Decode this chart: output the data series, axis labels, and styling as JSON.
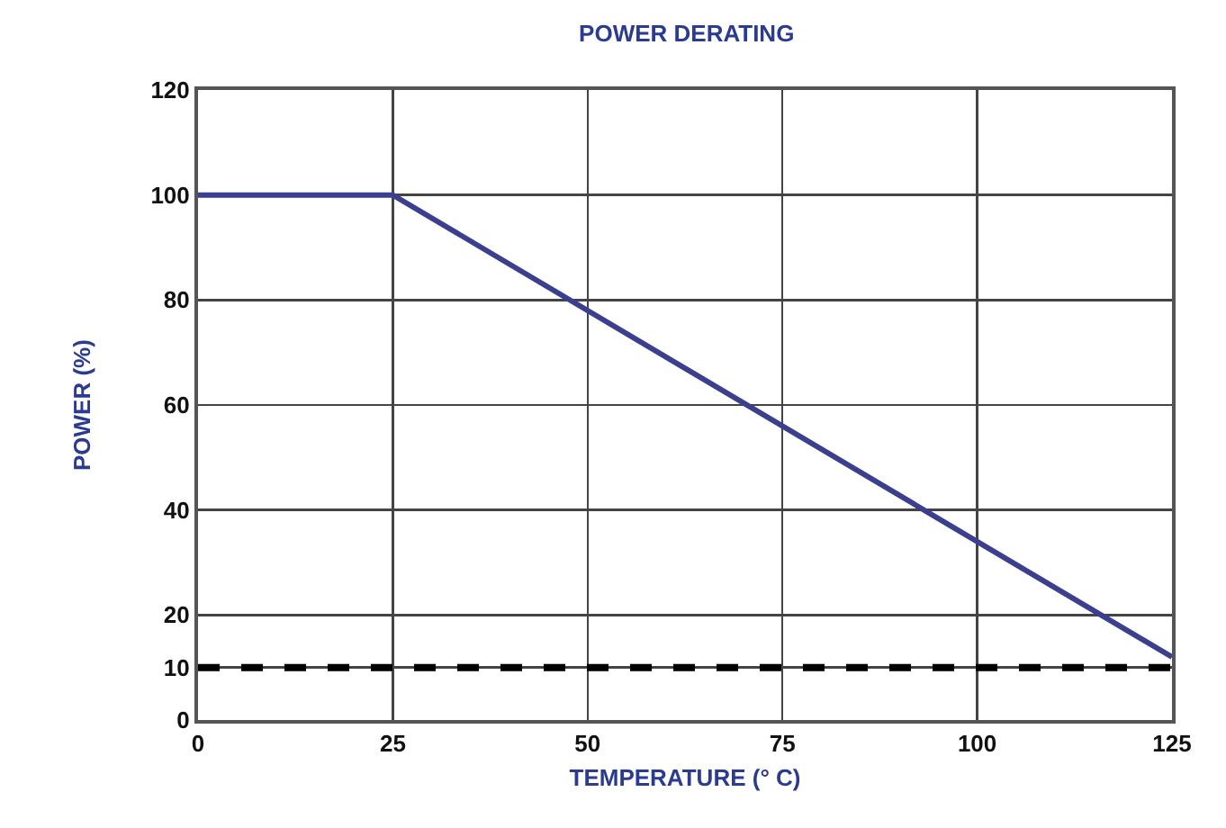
{
  "chart_data": {
    "type": "line",
    "title": "POWER DERATING",
    "xlabel": "TEMPERATURE (° C)",
    "ylabel": "POWER (%)",
    "x": [
      0,
      25,
      125
    ],
    "series": [
      {
        "color": "#3b3f8f",
        "values": [
          100,
          100,
          12
        ]
      }
    ],
    "xlim": [
      0,
      125
    ],
    "xticks": [
      0,
      25,
      50,
      75,
      100,
      125
    ],
    "ylim": [
      0,
      120
    ],
    "yticks": [
      0,
      10,
      20,
      40,
      60,
      80,
      100,
      120
    ],
    "grid": true,
    "marker": "none",
    "line_style": "solid",
    "ref_lines": [
      {
        "axis": "y",
        "value": 10,
        "color": "#000000",
        "line_style": "dashed"
      }
    ]
  }
}
